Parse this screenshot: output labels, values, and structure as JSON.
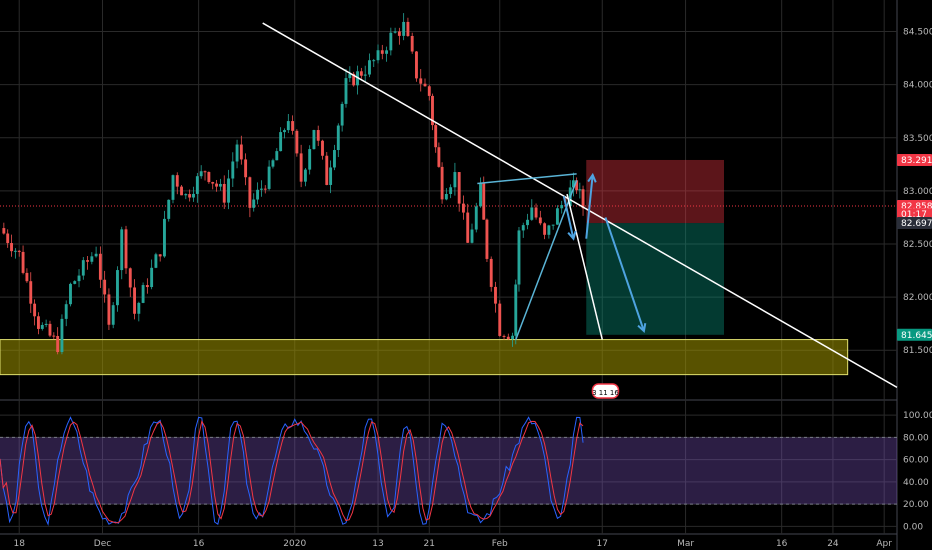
{
  "chart_data": [
    {
      "type": "candlestick",
      "title": "",
      "ylim": [
        81.05,
        84.75
      ],
      "y_ticks": [
        "84.500",
        "84.000",
        "83.500",
        "83.000",
        "82.500",
        "82.000",
        "81.500"
      ],
      "y_tick_values": [
        84.5,
        84.0,
        83.5,
        83.0,
        82.5,
        82.0,
        81.5
      ],
      "x_ticks": [
        "18",
        "Dec",
        "16",
        "2020",
        "13",
        "21",
        "Feb",
        "17",
        "Mar",
        "16",
        "24",
        "Apr"
      ],
      "x_tick_days": [
        0,
        13,
        28,
        43,
        56,
        64,
        75,
        91,
        104,
        119,
        127,
        135
      ],
      "xlim_days": [
        -3,
        137
      ],
      "price_tags": [
        {
          "label": "83.291",
          "value": 83.291,
          "color": "#f23645"
        },
        {
          "label": "82.858",
          "value": 82.858,
          "color": "#f23645"
        },
        {
          "label": "01:17",
          "value": 82.78,
          "color": "#f23645"
        },
        {
          "label": "82.697",
          "value": 82.697,
          "color": "#2a2e39"
        },
        {
          "label": "81.645",
          "value": 81.645,
          "color": "#089981"
        }
      ],
      "current_price": 82.858,
      "support_zone": [
        81.27,
        81.6
      ],
      "short_position": {
        "start_day": 88.5,
        "end_day": 110,
        "entry": 82.697,
        "stop": 83.291,
        "target": 81.645
      },
      "trendlines": [
        {
          "from": [
            38,
            84.58
          ],
          "to": [
            137,
            81.15
          ],
          "color": "#ffffff"
        },
        {
          "from": [
            71.5,
            83.07
          ],
          "to": [
            87,
            83.16
          ],
          "color": "#5ab4d6"
        },
        {
          "from": [
            77.5,
            81.6
          ],
          "to": [
            87,
            83.1
          ],
          "color": "#5ab4d6"
        },
        {
          "from": [
            85.5,
            82.97
          ],
          "to": [
            91,
            81.6
          ],
          "color": "#ffffff"
        }
      ],
      "arrows": [
        {
          "from": [
            85,
            82.95
          ],
          "to": [
            86.5,
            82.55
          ],
          "color": "#4ea3e0"
        },
        {
          "from": [
            88.5,
            82.55
          ],
          "to": [
            89.5,
            83.15
          ],
          "color": "#4ea3e0"
        },
        {
          "from": [
            91.5,
            82.75
          ],
          "to": [
            97.5,
            81.68
          ],
          "color": "#4ea3e0"
        }
      ],
      "candles": [],
      "event_badge": "3 11 16"
    },
    {
      "type": "line",
      "title": "",
      "ylim": [
        -5,
        110
      ],
      "y_ticks": [
        "100.00",
        "80.00",
        "60.00",
        "40.00",
        "20.00",
        "0.00"
      ],
      "y_tick_values": [
        100,
        80,
        60,
        40,
        20,
        0
      ],
      "band": [
        20,
        80
      ],
      "series": [
        {
          "color": "#2962ff",
          "values": []
        },
        {
          "color": "#f23645",
          "values": []
        }
      ]
    }
  ]
}
